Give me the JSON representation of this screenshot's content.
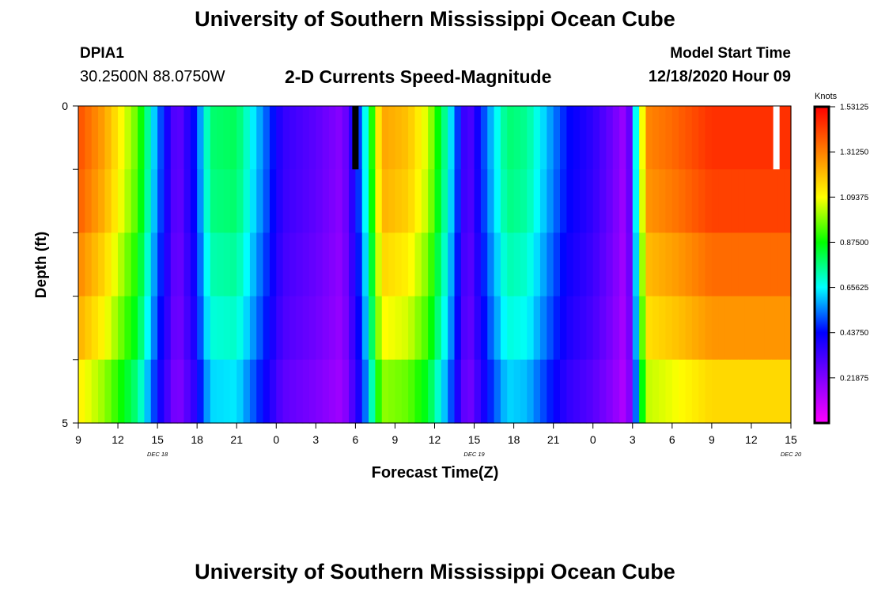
{
  "header": {
    "title": "University of Southern Mississippi Ocean Cube",
    "station_id": "DPIA1",
    "coordinates": "30.2500N 88.0750W",
    "subtitle": "2-D Currents Speed-Magnitude",
    "model_start_label": "Model Start Time",
    "model_start_value": "12/18/2020 Hour 09"
  },
  "footer": {
    "title": "University of Southern Mississippi Ocean Cube"
  },
  "chart_data": {
    "type": "heatmap",
    "title": "2-D Currents Speed-Magnitude",
    "xlabel": "Forecast Time(Z)",
    "ylabel": "Depth (ft)",
    "ylim": [
      0,
      5
    ],
    "y_tick_labels": [
      "0",
      "5"
    ],
    "x_tick_labels": [
      "9",
      "12",
      "15",
      "18",
      "21",
      "0",
      "3",
      "6",
      "9",
      "12",
      "15",
      "18",
      "21",
      "0",
      "3",
      "6",
      "9",
      "12",
      "15"
    ],
    "date_labels": [
      {
        "label": "DEC 18",
        "after_tick": 1
      },
      {
        "label": "DEC 19",
        "after_tick": 9
      },
      {
        "label": "DEC 20",
        "after_tick": 17
      }
    ],
    "forecast_hours": [
      0,
      54
    ],
    "depth_levels": 5,
    "colorbar": {
      "title": "Knots",
      "range": [
        0,
        1.53125
      ],
      "tick_labels": [
        "1.53125",
        "1.31250",
        "1.09375",
        "0.87500",
        "0.65625",
        "0.43750",
        "0.21875"
      ],
      "tick_values": [
        1.53125,
        1.3125,
        1.09375,
        0.875,
        0.65625,
        0.4375,
        0.21875
      ],
      "colors": [
        "#ff00ff",
        "#8000ff",
        "#0000ff",
        "#00ffff",
        "#00ff00",
        "#ffff00",
        "#ff8000",
        "#ff0000"
      ]
    },
    "speed_profile_surface_knots": [
      [
        0,
        1.4
      ],
      [
        2,
        1.25
      ],
      [
        4.5,
        0.95
      ],
      [
        6,
        0.55
      ],
      [
        7.5,
        0.25
      ],
      [
        8.8,
        0.45
      ],
      [
        10,
        0.78
      ],
      [
        12,
        0.8
      ],
      [
        14,
        0.55
      ],
      [
        15.5,
        0.35
      ],
      [
        18,
        0.28
      ],
      [
        20,
        0.2
      ],
      [
        21.5,
        0.55
      ],
      [
        23,
        1.25
      ],
      [
        25,
        1.2
      ],
      [
        26.5,
        1.05
      ],
      [
        28,
        0.7
      ],
      [
        29.5,
        0.27
      ],
      [
        31,
        0.55
      ],
      [
        32.5,
        0.78
      ],
      [
        34,
        0.75
      ],
      [
        35.5,
        0.6
      ],
      [
        37,
        0.45
      ],
      [
        39,
        0.36
      ],
      [
        40.5,
        0.25
      ],
      [
        41.6,
        0.15
      ],
      [
        42.2,
        0.62
      ],
      [
        43,
        1.3
      ],
      [
        45,
        1.35
      ],
      [
        48,
        1.45
      ],
      [
        54,
        1.45
      ]
    ],
    "depth_factors": [
      1.0,
      0.98,
      0.93,
      0.88,
      0.8
    ],
    "missing_cells": [
      {
        "hour": 21.0,
        "depth_level": 0,
        "color": "#000000"
      },
      {
        "hour": 52.9,
        "depth_level": 0,
        "color": "#ffffff"
      }
    ]
  }
}
